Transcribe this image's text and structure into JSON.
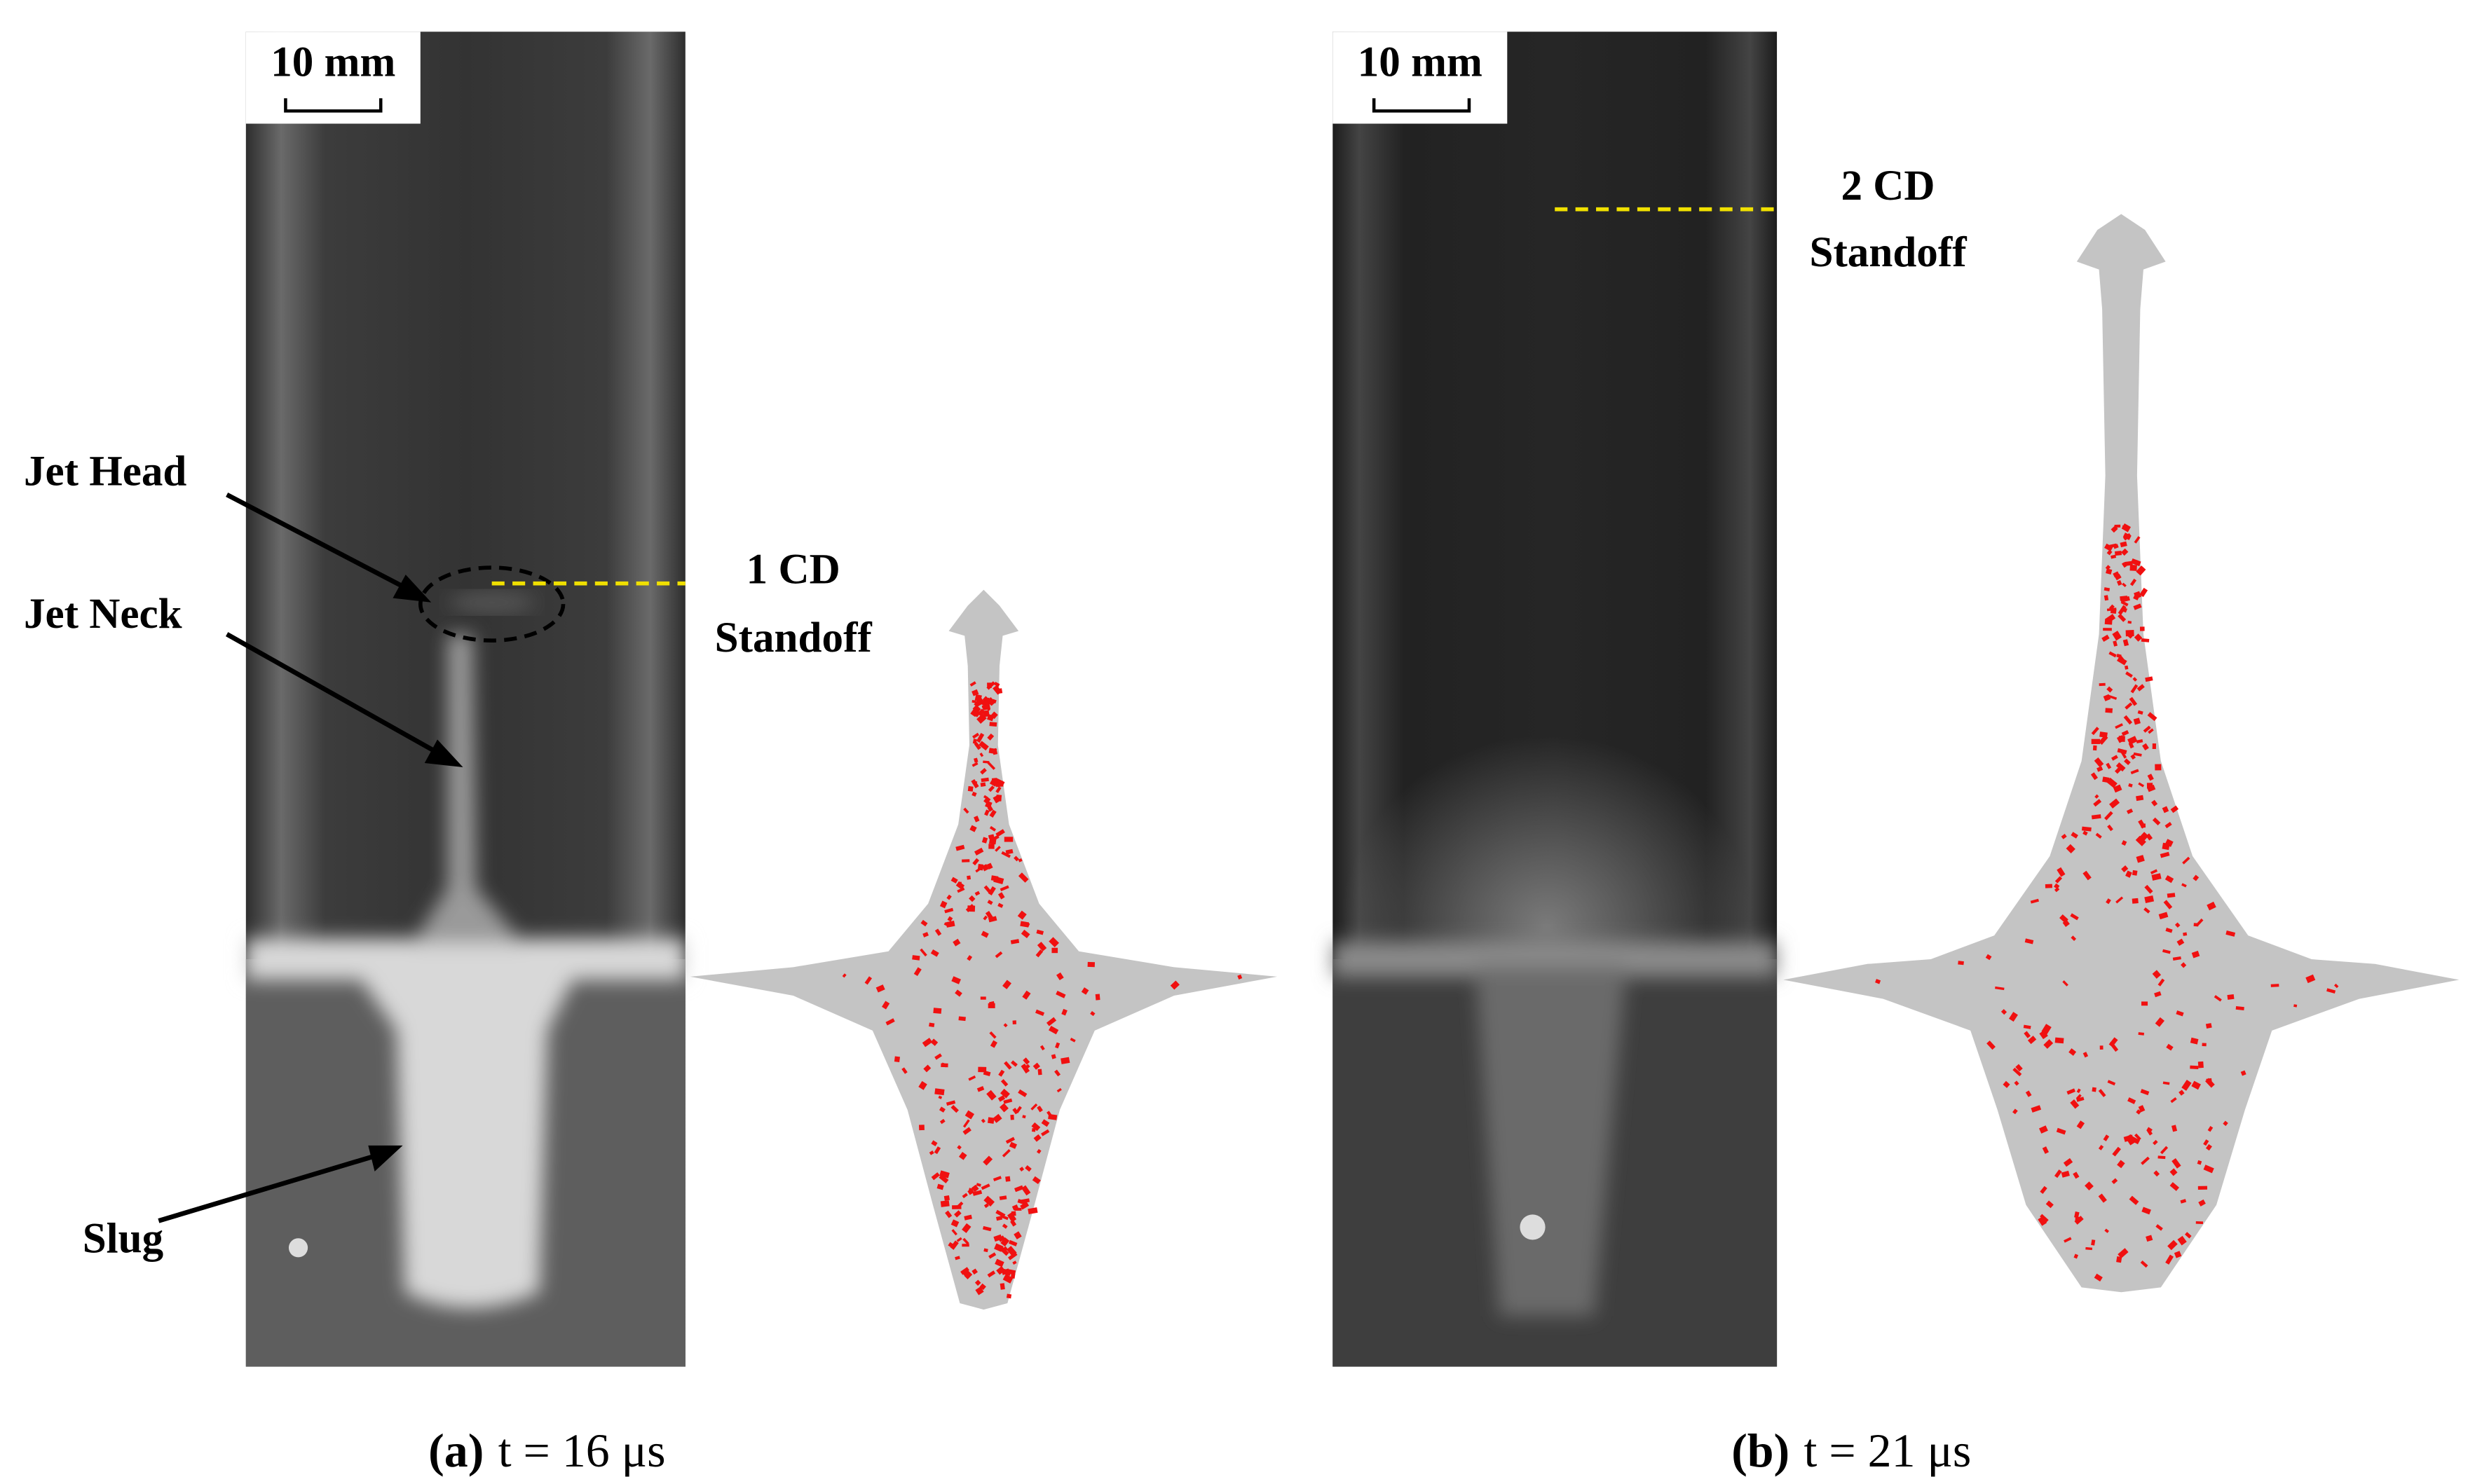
{
  "panels": [
    {
      "scale_bar": "10 mm",
      "standoff": [
        "1 CD",
        "Standoff"
      ],
      "labels": [
        "Jet Head",
        "Jet Neck",
        "Slug"
      ],
      "caption": {
        "letter": "(a)",
        "text": "t = 16 μs"
      }
    },
    {
      "scale_bar": "10 mm",
      "standoff": [
        "2 CD",
        "Standoff"
      ],
      "caption": {
        "letter": "(b)",
        "text": "t = 21 μs"
      }
    }
  ]
}
